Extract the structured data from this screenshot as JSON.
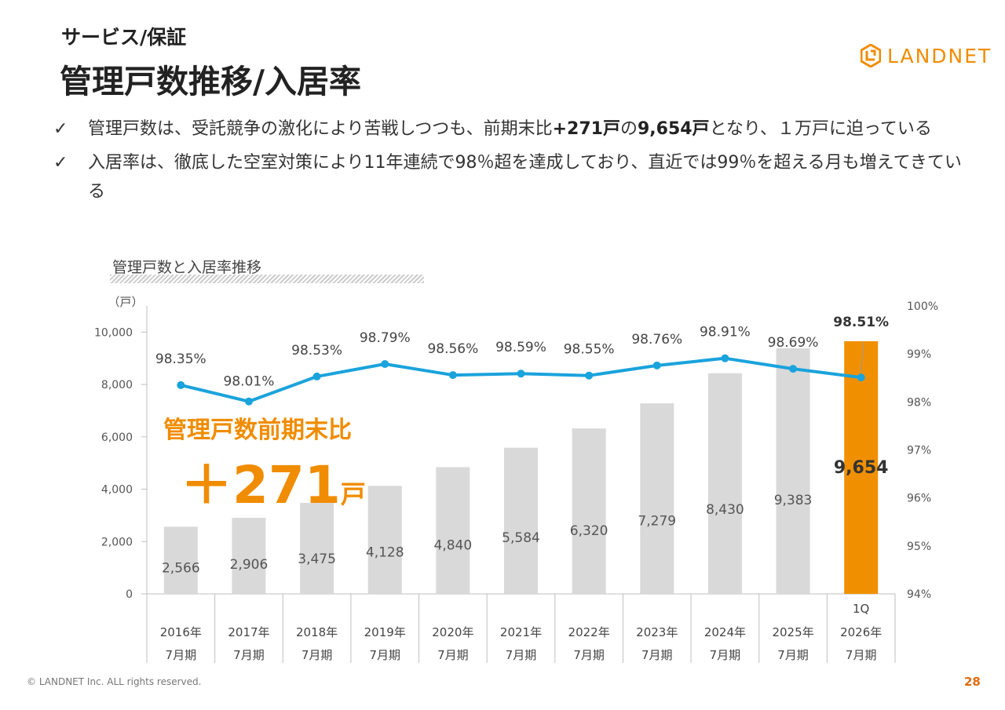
{
  "header": {
    "subtitle": "サービス/保証",
    "title": "管理戸数推移/入居率",
    "logo_text": "LANDNET"
  },
  "bullets": [
    {
      "check": "✓",
      "text_a": "管理戸数は、受託競争の激化により苦戦しつつも、前期末比",
      "bold_a": "+271戸",
      "text_b": "の",
      "bold_b": "9,654戸",
      "text_c": "となり、１万戸に迫っている"
    },
    {
      "check": "✓",
      "text_a": "入居率は、徹底した空室対策により11年連続で98％超を達成しており、直近では99％を超える月も増えてきている"
    }
  ],
  "chart_heading": "管理戸数と入居率推移",
  "callout": {
    "title": "管理戸数前期末比",
    "value": "＋271",
    "unit": "戸"
  },
  "chart_data": {
    "type": "bar",
    "categories": [
      "2016年 7月期",
      "2017年 7月期",
      "2018年 7月期",
      "2019年 7月期",
      "2020年 7月期",
      "2021年 7月期",
      "2022年 7月期",
      "2023年 7月期",
      "2024年 7月期",
      "2025年 7月期",
      "1Q 2026年 7月期"
    ],
    "category_lines": [
      [
        "",
        "2016年",
        "7月期"
      ],
      [
        "",
        "2017年",
        "7月期"
      ],
      [
        "",
        "2018年",
        "7月期"
      ],
      [
        "",
        "2019年",
        "7月期"
      ],
      [
        "",
        "2020年",
        "7月期"
      ],
      [
        "",
        "2021年",
        "7月期"
      ],
      [
        "",
        "2022年",
        "7月期"
      ],
      [
        "",
        "2023年",
        "7月期"
      ],
      [
        "",
        "2024年",
        "7月期"
      ],
      [
        "",
        "2025年",
        "7月期"
      ],
      [
        "1Q",
        "2026年",
        "7月期"
      ]
    ],
    "series": [
      {
        "type": "bar",
        "axis": "left",
        "values": [
          2566,
          2906,
          3475,
          4128,
          4840,
          5584,
          6320,
          7279,
          8430,
          9383,
          9654
        ],
        "labels": [
          "2,566",
          "2,906",
          "3,475",
          "4,128",
          "4,840",
          "5,584",
          "6,320",
          "7,279",
          "8,430",
          "9,383",
          "9,654"
        ],
        "color": "#d9d9d9",
        "highlight_color": "#f09000",
        "highlight_index": 10
      },
      {
        "type": "line",
        "axis": "right",
        "values": [
          98.35,
          98.01,
          98.53,
          98.79,
          98.56,
          98.59,
          98.55,
          98.76,
          98.91,
          98.69,
          98.51
        ],
        "labels": [
          "98.35%",
          "98.01%",
          "98.53%",
          "98.79%",
          "98.56%",
          "98.59%",
          "98.55%",
          "98.76%",
          "98.91%",
          "98.69%",
          "98.51%"
        ],
        "color": "#1aa3dc"
      }
    ],
    "left_axis": {
      "unit": "（戸）",
      "ylim": [
        0,
        11000
      ],
      "ticks": [
        0,
        2000,
        4000,
        6000,
        8000,
        10000
      ],
      "tick_labels": [
        "0",
        "2,000",
        "4,000",
        "6,000",
        "8,000",
        "10,000"
      ]
    },
    "right_axis": {
      "ylim": [
        94,
        100
      ],
      "ticks": [
        94,
        95,
        96,
        97,
        98,
        99,
        100
      ],
      "tick_labels": [
        "94%",
        "95%",
        "96%",
        "97%",
        "98%",
        "99%",
        "100%"
      ]
    },
    "grid": false,
    "legend": "none"
  },
  "footer": {
    "copyright": "© LANDNET Inc. ALL rights reserved.",
    "page": "28"
  },
  "colors": {
    "accent": "#f08c00",
    "line": "#1aa3dc",
    "bar": "#d9d9d9"
  }
}
